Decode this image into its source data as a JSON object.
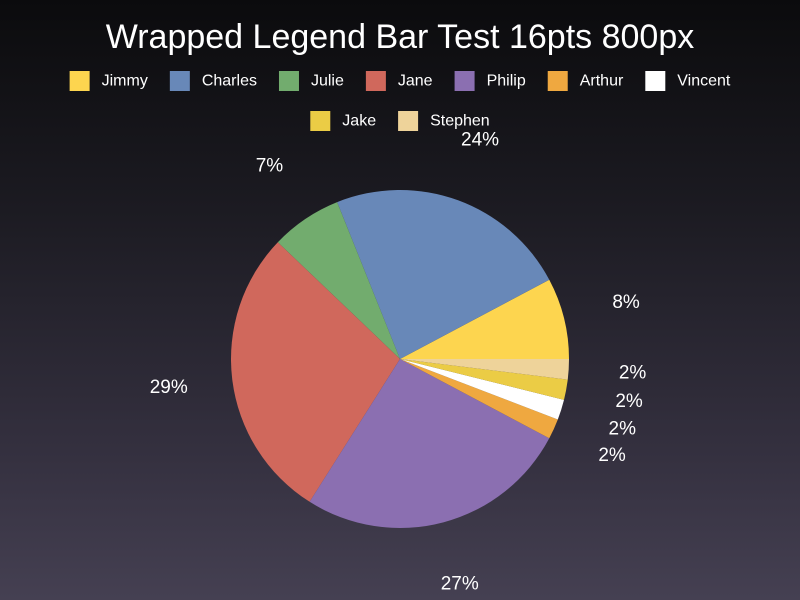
{
  "chart_data": {
    "type": "pie",
    "title": "Wrapped Legend Bar Test 16pts 800px",
    "legend_position": "top",
    "slices": [
      {
        "name": "Jimmy",
        "value": 8,
        "label": "8%",
        "color": "#fdd54f"
      },
      {
        "name": "Charles",
        "value": 24,
        "label": "24%",
        "color": "#6888b8"
      },
      {
        "name": "Julie",
        "value": 7,
        "label": "7%",
        "color": "#72ac6e"
      },
      {
        "name": "Jane",
        "value": 29,
        "label": "29%",
        "color": "#d0685c"
      },
      {
        "name": "Philip",
        "value": 27,
        "label": "27%",
        "color": "#8b6fb1"
      },
      {
        "name": "Arthur",
        "value": 2,
        "label": "2%",
        "color": "#efa840"
      },
      {
        "name": "Vincent",
        "value": 2,
        "label": "2%",
        "color": "#ffffff"
      },
      {
        "name": "Jake",
        "value": 2,
        "label": "2%",
        "color": "#ebcc45"
      },
      {
        "name": "Stephen",
        "value": 2,
        "label": "2%",
        "color": "#eed39a"
      }
    ]
  }
}
